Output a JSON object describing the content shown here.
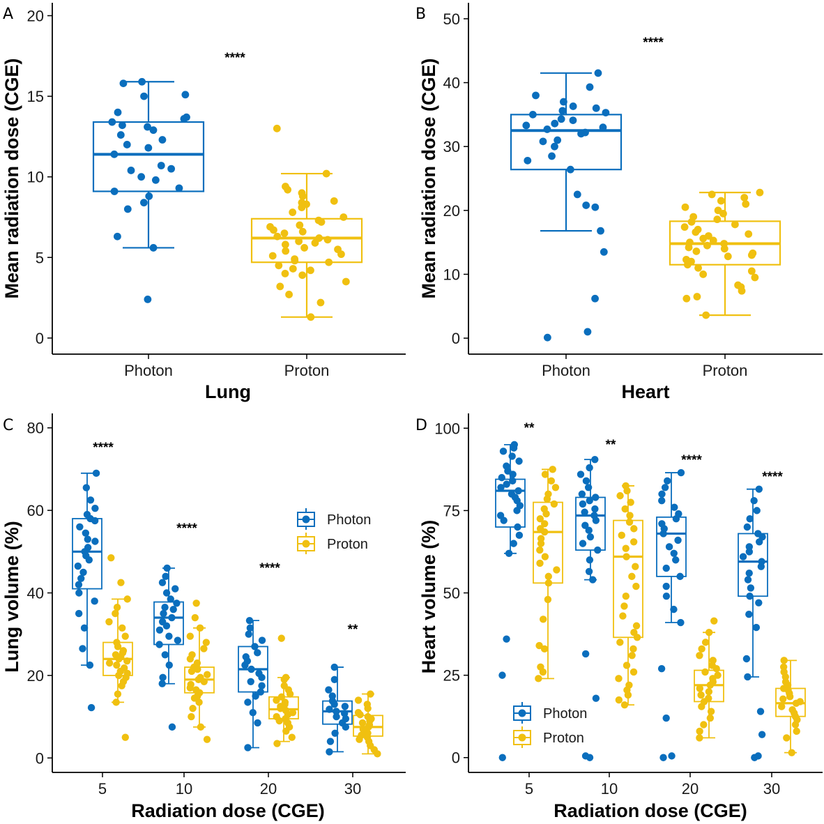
{
  "colors": {
    "photon": "#0a6ebd",
    "proton": "#f0c010",
    "axis": "#000000"
  },
  "legend": [
    "Photon",
    "Proton"
  ],
  "chart_data": [
    {
      "panel": "A",
      "type": "boxplot",
      "title": "",
      "xlabel": "Lung",
      "ylabel": "Mean radiation dose (CGE)",
      "ylim": [
        -1,
        20.8
      ],
      "yticks": [
        0,
        5,
        10,
        15,
        20
      ],
      "categories": [
        "Photon",
        "Proton"
      ],
      "significance": "****",
      "boxes": [
        {
          "group": "Photon",
          "lower": 5.6,
          "q1": 9.1,
          "median": 11.4,
          "q3": 13.4,
          "upper": 15.9
        },
        {
          "group": "Proton",
          "lower": 1.3,
          "q1": 4.7,
          "median": 6.2,
          "q3": 7.4,
          "upper": 10.2
        }
      ],
      "points": [
        [
          2.4,
          5.6,
          6.3,
          8.0,
          8.4,
          8.8,
          9.1,
          9.3,
          9.8,
          10.0,
          10.4,
          10.5,
          10.7,
          11.4,
          11.8,
          12.0,
          12.3,
          12.6,
          12.9,
          13.1,
          13.2,
          13.4,
          13.6,
          13.7,
          14.0,
          15.0,
          15.1,
          15.8,
          15.9
        ],
        [
          1.3,
          2.2,
          2.7,
          3.2,
          3.5,
          3.9,
          4.0,
          4.2,
          4.3,
          4.5,
          4.7,
          4.8,
          4.9,
          5.1,
          5.2,
          5.4,
          5.5,
          5.6,
          5.8,
          5.9,
          6.0,
          6.1,
          6.2,
          6.3,
          6.5,
          6.6,
          6.7,
          6.9,
          7.0,
          7.2,
          7.3,
          7.5,
          7.8,
          8.1,
          8.3,
          8.4,
          8.5,
          8.8,
          9.0,
          9.2,
          9.4,
          10.2,
          13.0
        ]
      ]
    },
    {
      "panel": "B",
      "type": "boxplot",
      "title": "",
      "xlabel": "Heart",
      "ylabel": "Mean radiation dose (CGE)",
      "ylim": [
        -2.5,
        52.5
      ],
      "yticks": [
        0,
        10,
        20,
        30,
        40,
        50
      ],
      "categories": [
        "Photon",
        "Proton"
      ],
      "significance": "****",
      "boxes": [
        {
          "group": "Photon",
          "lower": 16.8,
          "q1": 26.4,
          "median": 32.5,
          "q3": 35.0,
          "upper": 41.5
        },
        {
          "group": "Proton",
          "lower": 3.6,
          "q1": 11.5,
          "median": 14.8,
          "q3": 18.3,
          "upper": 22.8
        }
      ],
      "points": [
        [
          0.1,
          1.0,
          6.2,
          13.5,
          16.8,
          20.5,
          20.8,
          22.5,
          26.4,
          27.8,
          28.5,
          30.0,
          30.8,
          31.0,
          32.0,
          32.2,
          32.7,
          33.0,
          33.3,
          33.6,
          34.1,
          34.3,
          35.0,
          35.3,
          35.6,
          36.0,
          36.3,
          37.0,
          38.0,
          39.3,
          41.5
        ],
        [
          3.6,
          6.2,
          6.5,
          7.4,
          8.0,
          8.3,
          9.5,
          10.0,
          10.5,
          11.0,
          11.5,
          12.0,
          12.3,
          12.8,
          13.0,
          13.3,
          13.6,
          14.0,
          14.2,
          14.5,
          14.8,
          15.0,
          15.3,
          15.6,
          16.0,
          16.3,
          16.6,
          17.0,
          17.4,
          17.8,
          18.2,
          18.6,
          19.0,
          19.5,
          20.0,
          20.5,
          21.0,
          21.5,
          22.0,
          22.5,
          22.8
        ]
      ]
    },
    {
      "panel": "C",
      "type": "boxplot",
      "title": "",
      "xlabel": "Radiation dose (CGE)",
      "ylabel": "Lung volume (%)",
      "ylim": [
        -3.5,
        83.5
      ],
      "yticks": [
        0,
        20,
        40,
        60,
        80
      ],
      "categories": [
        "5",
        "10",
        "20",
        "30"
      ],
      "series": [
        "Photon",
        "Proton"
      ],
      "significance": [
        "****",
        "****",
        "****",
        "**"
      ],
      "legend_position": "top-right",
      "boxes": [
        {
          "category": "5",
          "group": "Photon",
          "lower": 22.5,
          "q1": 41.0,
          "median": 50.0,
          "q3": 58.0,
          "upper": 69.0
        },
        {
          "category": "5",
          "group": "Proton",
          "lower": 13.5,
          "q1": 20.0,
          "median": 24.0,
          "q3": 28.0,
          "upper": 38.5
        },
        {
          "category": "10",
          "group": "Photon",
          "lower": 18.0,
          "q1": 27.5,
          "median": 34.0,
          "q3": 37.8,
          "upper": 46.0
        },
        {
          "category": "10",
          "group": "Proton",
          "lower": 7.5,
          "q1": 15.8,
          "median": 19.0,
          "q3": 22.0,
          "upper": 31.5
        },
        {
          "category": "20",
          "group": "Photon",
          "lower": 2.5,
          "q1": 16.0,
          "median": 21.5,
          "q3": 27.0,
          "upper": 33.3
        },
        {
          "category": "20",
          "group": "Proton",
          "lower": 4.0,
          "q1": 9.5,
          "median": 11.8,
          "q3": 14.8,
          "upper": 19.5
        },
        {
          "category": "30",
          "group": "Photon",
          "lower": 1.5,
          "q1": 8.2,
          "median": 11.3,
          "q3": 13.8,
          "upper": 22.0
        },
        {
          "category": "30",
          "group": "Proton",
          "lower": 1.0,
          "q1": 5.3,
          "median": 7.5,
          "q3": 10.3,
          "upper": 15.5
        }
      ],
      "points": [
        [
          12.2,
          22.5,
          26.5,
          31.5,
          35.0,
          38.0,
          40.0,
          42.0,
          43.5,
          45.0,
          46.5,
          48.0,
          49.0,
          50.0,
          51.0,
          52.5,
          53.0,
          54.5,
          56.0,
          57.5,
          58.0,
          59.0,
          60.5,
          62.5,
          65.5,
          69.0
        ],
        [
          5.0,
          13.5,
          15.5,
          17.5,
          18.5,
          19.5,
          20.0,
          20.5,
          21.0,
          21.8,
          22.5,
          23.0,
          23.5,
          24.0,
          24.5,
          25.0,
          25.5,
          26.0,
          27.0,
          28.0,
          29.5,
          31.5,
          33.0,
          35.0,
          36.5,
          38.5,
          42.5,
          48.5
        ],
        [
          7.5,
          18.0,
          19.5,
          22.5,
          25.0,
          27.5,
          28.5,
          29.5,
          31.0,
          32.0,
          33.0,
          34.0,
          35.0,
          36.0,
          36.5,
          37.5,
          38.5,
          40.0,
          41.0,
          42.5,
          44.0,
          46.0
        ],
        [
          4.5,
          7.5,
          10.0,
          12.0,
          13.5,
          14.5,
          15.0,
          15.8,
          16.5,
          17.0,
          17.8,
          18.5,
          19.0,
          19.5,
          20.2,
          21.0,
          21.5,
          22.0,
          23.0,
          24.0,
          25.0,
          26.5,
          28.0,
          29.5,
          31.5,
          34.0,
          37.5
        ],
        [
          2.5,
          8.5,
          11.0,
          13.5,
          15.0,
          16.0,
          17.5,
          18.5,
          19.5,
          20.5,
          21.5,
          22.5,
          23.5,
          24.5,
          25.5,
          27.0,
          28.5,
          30.0,
          31.5,
          33.3
        ],
        [
          3.5,
          5.0,
          6.5,
          7.5,
          8.5,
          9.0,
          9.5,
          10.0,
          10.5,
          11.0,
          11.5,
          12.0,
          12.5,
          13.0,
          13.5,
          14.0,
          14.8,
          15.5,
          16.5,
          17.5,
          19.0,
          19.5,
          29.0
        ],
        [
          1.5,
          4.0,
          6.0,
          7.5,
          8.5,
          9.5,
          10.0,
          10.8,
          11.3,
          11.8,
          12.5,
          13.0,
          13.8,
          15.0,
          16.5,
          19.0,
          22.0
        ],
        [
          1.0,
          2.0,
          3.0,
          4.0,
          4.5,
          5.0,
          5.5,
          6.0,
          6.5,
          7.0,
          7.5,
          8.0,
          8.5,
          9.0,
          9.5,
          10.0,
          10.5,
          11.0,
          12.0,
          13.0,
          14.0,
          15.5
        ]
      ]
    },
    {
      "panel": "D",
      "type": "boxplot",
      "title": "",
      "xlabel": "Radiation dose (CGE)",
      "ylabel": "Heart volume (%)",
      "ylim": [
        -4.5,
        104.5
      ],
      "yticks": [
        0,
        25,
        50,
        75,
        100
      ],
      "categories": [
        "5",
        "10",
        "20",
        "30"
      ],
      "series": [
        "Photon",
        "Proton"
      ],
      "significance": [
        "**",
        "**",
        "****",
        "****"
      ],
      "legend_position": "bottom-left",
      "boxes": [
        {
          "category": "5",
          "group": "Photon",
          "lower": 62.0,
          "q1": 70.0,
          "median": 81.0,
          "q3": 84.5,
          "upper": 95.0
        },
        {
          "category": "5",
          "group": "Proton",
          "lower": 24.0,
          "q1": 53.0,
          "median": 68.5,
          "q3": 77.5,
          "upper": 87.5
        },
        {
          "category": "10",
          "group": "Photon",
          "lower": 54.0,
          "q1": 63.0,
          "median": 73.5,
          "q3": 79.0,
          "upper": 90.5
        },
        {
          "category": "10",
          "group": "Proton",
          "lower": 16.0,
          "q1": 36.5,
          "median": 61.0,
          "q3": 72.0,
          "upper": 82.5
        },
        {
          "category": "20",
          "group": "Photon",
          "lower": 41.0,
          "q1": 55.0,
          "median": 68.0,
          "q3": 73.0,
          "upper": 86.5
        },
        {
          "category": "20",
          "group": "Proton",
          "lower": 6.0,
          "q1": 17.0,
          "median": 22.0,
          "q3": 26.5,
          "upper": 38.0
        },
        {
          "category": "30",
          "group": "Photon",
          "lower": 24.5,
          "q1": 49.0,
          "median": 59.5,
          "q3": 68.0,
          "upper": 81.5
        },
        {
          "category": "30",
          "group": "Proton",
          "lower": 1.5,
          "q1": 12.5,
          "median": 16.5,
          "q3": 21.0,
          "upper": 29.5
        }
      ],
      "points": [
        [
          0.0,
          25.0,
          36.0,
          62.0,
          65.0,
          67.5,
          70.0,
          72.0,
          73.5,
          75.0,
          76.5,
          78.0,
          79.0,
          80.0,
          81.0,
          82.0,
          83.0,
          84.0,
          85.0,
          86.0,
          87.0,
          88.5,
          90.0,
          91.5,
          93.0,
          94.0,
          95.0
        ],
        [
          24.0,
          26.0,
          27.5,
          33.0,
          34.0,
          42.0,
          48.0,
          53.0,
          55.0,
          57.0,
          59.0,
          61.0,
          63.0,
          65.0,
          66.5,
          68.5,
          69.5,
          71.0,
          72.5,
          74.0,
          75.5,
          77.0,
          78.5,
          80.0,
          82.0,
          84.0,
          86.0,
          87.5
        ],
        [
          0.0,
          0.5,
          18.0,
          31.5,
          54.0,
          56.5,
          60.0,
          63.0,
          65.0,
          67.0,
          69.0,
          70.5,
          72.0,
          73.5,
          74.5,
          75.5,
          77.0,
          78.0,
          79.0,
          80.0,
          82.0,
          84.0,
          86.0,
          88.0,
          90.5
        ],
        [
          16.0,
          17.5,
          19.0,
          20.5,
          22.0,
          24.0,
          26.0,
          28.0,
          31.0,
          33.0,
          35.0,
          36.5,
          38.0,
          40.0,
          43.0,
          46.0,
          49.0,
          52.0,
          55.0,
          58.0,
          61.0,
          63.5,
          65.5,
          67.5,
          69.5,
          71.5,
          73.5,
          75.5,
          77.5,
          79.5,
          81.0,
          82.5
        ],
        [
          0.0,
          0.5,
          12.0,
          27.0,
          41.0,
          45.0,
          49.0,
          52.0,
          55.0,
          57.5,
          60.0,
          62.0,
          64.0,
          66.0,
          68.0,
          69.5,
          71.0,
          72.5,
          74.0,
          76.0,
          78.0,
          80.0,
          82.0,
          84.0,
          86.5
        ],
        [
          6.0,
          8.0,
          10.0,
          12.0,
          14.0,
          15.5,
          17.0,
          18.0,
          19.0,
          20.0,
          21.0,
          22.0,
          23.0,
          24.0,
          25.0,
          26.0,
          27.0,
          28.0,
          29.5,
          31.0,
          33.0,
          35.0,
          38.0,
          41.5
        ],
        [
          0.0,
          0.5,
          7.0,
          14.0,
          24.5,
          30.0,
          39.5,
          43.5,
          47.0,
          49.0,
          51.5,
          54.0,
          56.0,
          58.0,
          59.5,
          61.0,
          62.5,
          64.0,
          65.5,
          67.0,
          68.0,
          70.0,
          72.5,
          75.0,
          78.0,
          81.5
        ],
        [
          1.5,
          6.0,
          8.0,
          10.0,
          11.5,
          12.5,
          13.5,
          14.5,
          15.5,
          16.5,
          17.0,
          17.8,
          18.5,
          19.5,
          20.5,
          21.0,
          22.0,
          23.0,
          24.5,
          26.0,
          27.5,
          29.5
        ]
      ]
    }
  ]
}
